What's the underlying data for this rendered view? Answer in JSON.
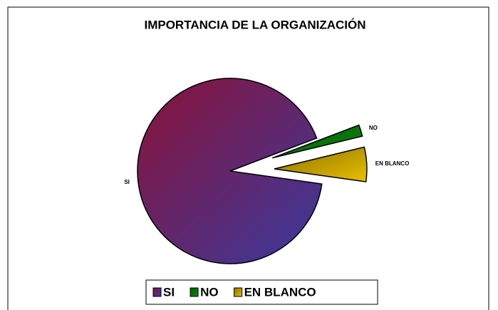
{
  "chart_data": {
    "type": "pie",
    "title": "IMPORTANCIA DE LA ORGANIZACIÓN",
    "categories": [
      "SI",
      "NO",
      "EN BLANCO"
    ],
    "values": [
      92,
      2,
      6
    ],
    "series_colors": [
      [
        "#8b1238",
        "#3a3a9e"
      ],
      [
        "#005a00",
        "#118811"
      ],
      [
        "#8a7000",
        "#e8c000"
      ]
    ],
    "legend": "bottom"
  }
}
